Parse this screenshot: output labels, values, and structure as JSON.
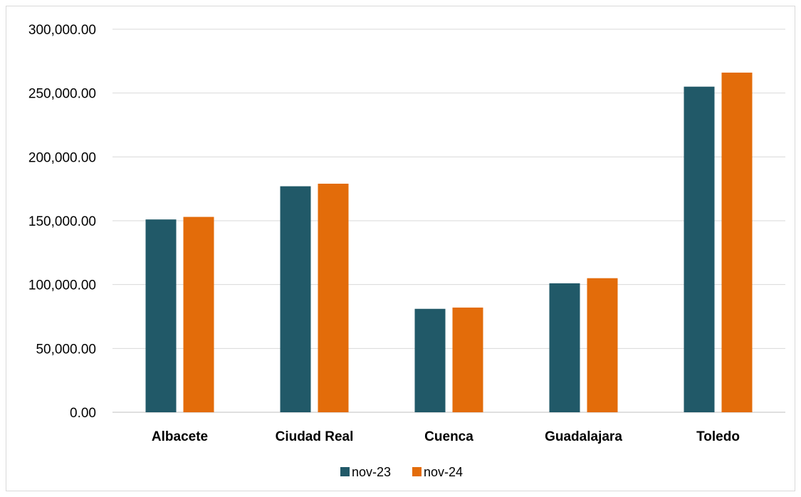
{
  "chart_data": {
    "type": "bar",
    "categories": [
      "Albacete",
      "Ciudad Real",
      "Cuenca",
      "Guadalajara",
      "Toledo"
    ],
    "series": [
      {
        "name": "nov-23",
        "values": [
          151000,
          177000,
          81000,
          101000,
          255000
        ],
        "color": "#215968"
      },
      {
        "name": "nov-24",
        "values": [
          153000,
          179000,
          82000,
          105000,
          266000
        ],
        "color": "#E36C0A"
      }
    ],
    "title": "",
    "xlabel": "",
    "ylabel": "",
    "ylim": [
      0,
      300000
    ],
    "yticks": [
      "0.00",
      "50,000.00",
      "100,000.00",
      "150,000.00",
      "200,000.00",
      "250,000.00",
      "300,000.00"
    ],
    "grid": true,
    "legend_position": "bottom"
  }
}
